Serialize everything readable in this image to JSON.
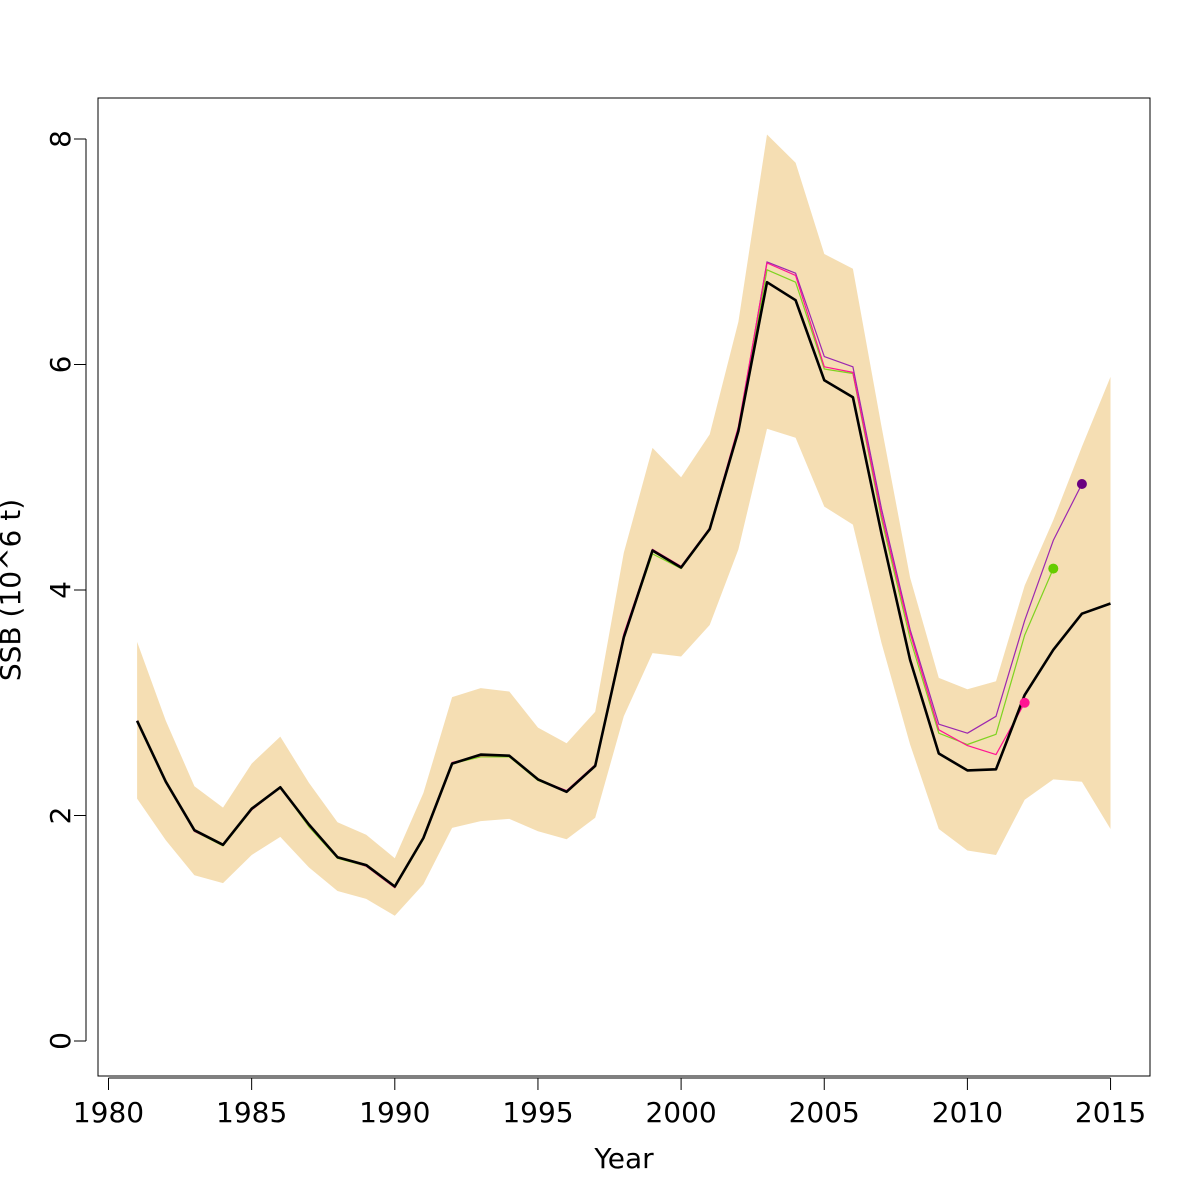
{
  "chart_data": {
    "type": "line",
    "xlabel": "Year",
    "ylabel": "SSB (10^6 t)",
    "xlim": [
      1980,
      2015
    ],
    "ylim": [
      0,
      8
    ],
    "x_ticks": [
      1980,
      1985,
      1990,
      1995,
      2000,
      2005,
      2010,
      2015
    ],
    "y_ticks": [
      0,
      2,
      4,
      6,
      8
    ],
    "x_tick_labels": [
      "1980",
      "1985",
      "1990",
      "1995",
      "2000",
      "2005",
      "2010",
      "2015"
    ],
    "y_tick_labels": [
      "0",
      "2",
      "4",
      "6",
      "8"
    ],
    "grid": false,
    "legend": "none",
    "confidence_band": {
      "color": "#f5deb3",
      "x": [
        1981,
        1982,
        1983,
        1984,
        1985,
        1986,
        1987,
        1988,
        1989,
        1990,
        1991,
        1992,
        1993,
        1994,
        1995,
        1996,
        1997,
        1998,
        1999,
        2000,
        2001,
        2002,
        2003,
        2004,
        2005,
        2006,
        2007,
        2008,
        2009,
        2010,
        2011,
        2012,
        2013,
        2014,
        2015
      ],
      "lower": [
        2.15,
        1.78,
        1.47,
        1.4,
        1.65,
        1.81,
        1.54,
        1.33,
        1.26,
        1.11,
        1.39,
        1.89,
        1.95,
        1.97,
        1.86,
        1.79,
        1.98,
        2.88,
        3.44,
        3.41,
        3.69,
        4.36,
        5.43,
        5.35,
        4.74,
        4.58,
        3.53,
        2.63,
        1.88,
        1.69,
        1.65,
        2.14,
        2.32,
        2.3,
        1.88
      ],
      "upper": [
        3.54,
        2.84,
        2.26,
        2.07,
        2.46,
        2.7,
        2.29,
        1.94,
        1.83,
        1.62,
        2.2,
        3.05,
        3.13,
        3.1,
        2.78,
        2.64,
        2.92,
        4.33,
        5.26,
        5.0,
        5.38,
        6.38,
        8.04,
        7.79,
        6.98,
        6.85,
        5.45,
        4.11,
        3.22,
        3.12,
        3.19,
        4.04,
        4.62,
        5.27,
        5.89
      ]
    },
    "series": [
      {
        "color": "#9c27b0",
        "x": [
          1981,
          1982,
          1983,
          1984,
          1985,
          1986,
          1987,
          1988,
          1989,
          1990,
          1991,
          1992,
          1993,
          1994,
          1995,
          1996,
          1997,
          1998,
          1999,
          2000,
          2001,
          2002,
          2003,
          2004,
          2005,
          2006,
          2007,
          2008,
          2009,
          2010,
          2011,
          2012,
          2013,
          2014
        ],
        "values": [
          2.84,
          2.3,
          1.86,
          1.74,
          2.05,
          2.25,
          1.91,
          1.63,
          1.55,
          1.36,
          1.8,
          2.46,
          2.53,
          2.53,
          2.32,
          2.22,
          2.45,
          3.6,
          4.36,
          4.2,
          4.55,
          5.43,
          6.91,
          6.81,
          6.07,
          5.98,
          4.72,
          3.65,
          2.81,
          2.73,
          2.88,
          3.73,
          4.44,
          4.94
        ],
        "end_point": {
          "x": 2014,
          "y": 4.94,
          "color": "#6a0080"
        }
      },
      {
        "color": "#7ed320",
        "x": [
          1981,
          1982,
          1983,
          1984,
          1985,
          1986,
          1987,
          1988,
          1989,
          1990,
          1991,
          1992,
          1993,
          1994,
          1995,
          1996,
          1997,
          1998,
          1999,
          2000,
          2001,
          2002,
          2003,
          2004,
          2005,
          2006,
          2007,
          2008,
          2009,
          2010,
          2011,
          2012,
          2013
        ],
        "values": [
          2.83,
          2.3,
          1.86,
          1.73,
          2.05,
          2.25,
          1.9,
          1.62,
          1.55,
          1.36,
          1.79,
          2.46,
          2.52,
          2.52,
          2.31,
          2.21,
          2.44,
          3.58,
          4.32,
          4.19,
          4.53,
          5.4,
          6.84,
          6.73,
          5.96,
          5.92,
          4.63,
          3.57,
          2.73,
          2.63,
          2.72,
          3.6,
          4.19
        ],
        "end_point": {
          "x": 2013,
          "y": 4.19,
          "color": "#66cc00"
        }
      },
      {
        "color": "#ff1493",
        "x": [
          1981,
          1982,
          1983,
          1984,
          1985,
          1986,
          1987,
          1988,
          1989,
          1990,
          1991,
          1992,
          1993,
          1994,
          1995,
          1996,
          1997,
          1998,
          1999,
          2000,
          2001,
          2002,
          2003,
          2004,
          2005,
          2006,
          2007,
          2008,
          2009,
          2010,
          2011,
          2012
        ],
        "values": [
          2.84,
          2.3,
          1.86,
          1.74,
          2.05,
          2.25,
          1.91,
          1.63,
          1.55,
          1.36,
          1.8,
          2.47,
          2.53,
          2.53,
          2.32,
          2.22,
          2.45,
          3.61,
          4.36,
          4.21,
          4.55,
          5.45,
          6.9,
          6.79,
          5.98,
          5.93,
          4.67,
          3.62,
          2.76,
          2.62,
          2.54,
          3.0
        ],
        "end_point": {
          "x": 2012,
          "y": 3.0,
          "color": "#ff1493"
        }
      },
      {
        "color": "#000000",
        "x": [
          1981,
          1982,
          1983,
          1984,
          1985,
          1986,
          1987,
          1988,
          1989,
          1990,
          1991,
          1992,
          1993,
          1994,
          1995,
          1996,
          1997,
          1998,
          1999,
          2000,
          2001,
          2002,
          2003,
          2004,
          2005,
          2006,
          2007,
          2008,
          2009,
          2010,
          2011,
          2012,
          2013,
          2014,
          2015
        ],
        "values": [
          2.84,
          2.3,
          1.87,
          1.74,
          2.06,
          2.25,
          1.92,
          1.63,
          1.56,
          1.37,
          1.8,
          2.46,
          2.54,
          2.53,
          2.32,
          2.21,
          2.44,
          3.58,
          4.35,
          4.2,
          4.54,
          5.41,
          6.73,
          6.57,
          5.86,
          5.71,
          4.5,
          3.38,
          2.55,
          2.4,
          2.41,
          3.07,
          3.47,
          3.79,
          3.88
        ],
        "end_point": null
      }
    ]
  }
}
